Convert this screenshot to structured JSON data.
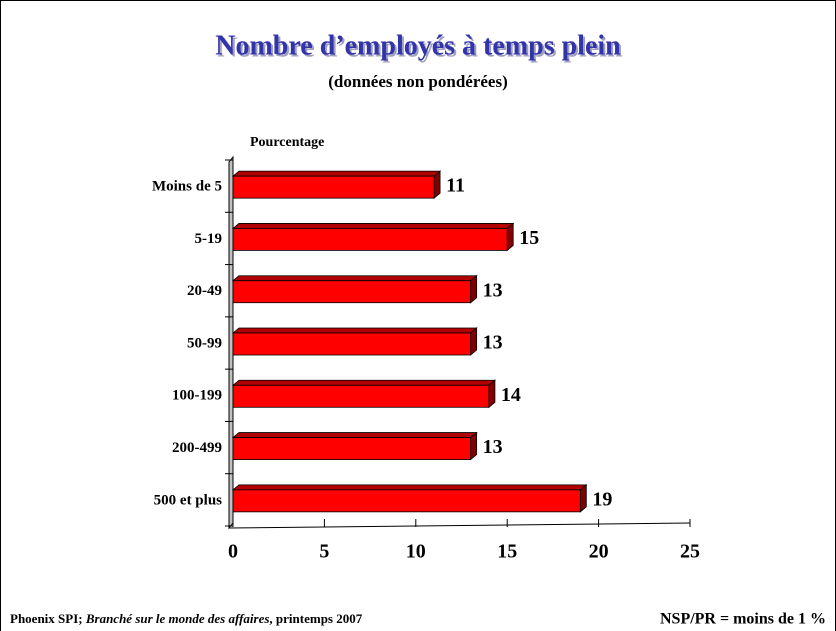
{
  "chart_data": {
    "type": "bar",
    "orientation": "horizontal",
    "title": "Nombre d’employés à temps plein",
    "subtitle": "(données non pondérées)",
    "axis_label": "Pourcentage",
    "categories": [
      "Moins de 5",
      "5-19",
      "20-49",
      "50-99",
      "100-199",
      "200-499",
      "500 et plus"
    ],
    "values": [
      11,
      15,
      13,
      13,
      14,
      13,
      19
    ],
    "color": "#ff0000",
    "xlim": [
      0,
      25
    ],
    "xticks": [
      0,
      5,
      10,
      15,
      20,
      25
    ],
    "footer": {
      "source": "Phoenix SPI;",
      "publication": "Branché sur le monde des affaires",
      "season": ", printemps 2007"
    },
    "note": "NSP/PR = moins de 1 %"
  }
}
